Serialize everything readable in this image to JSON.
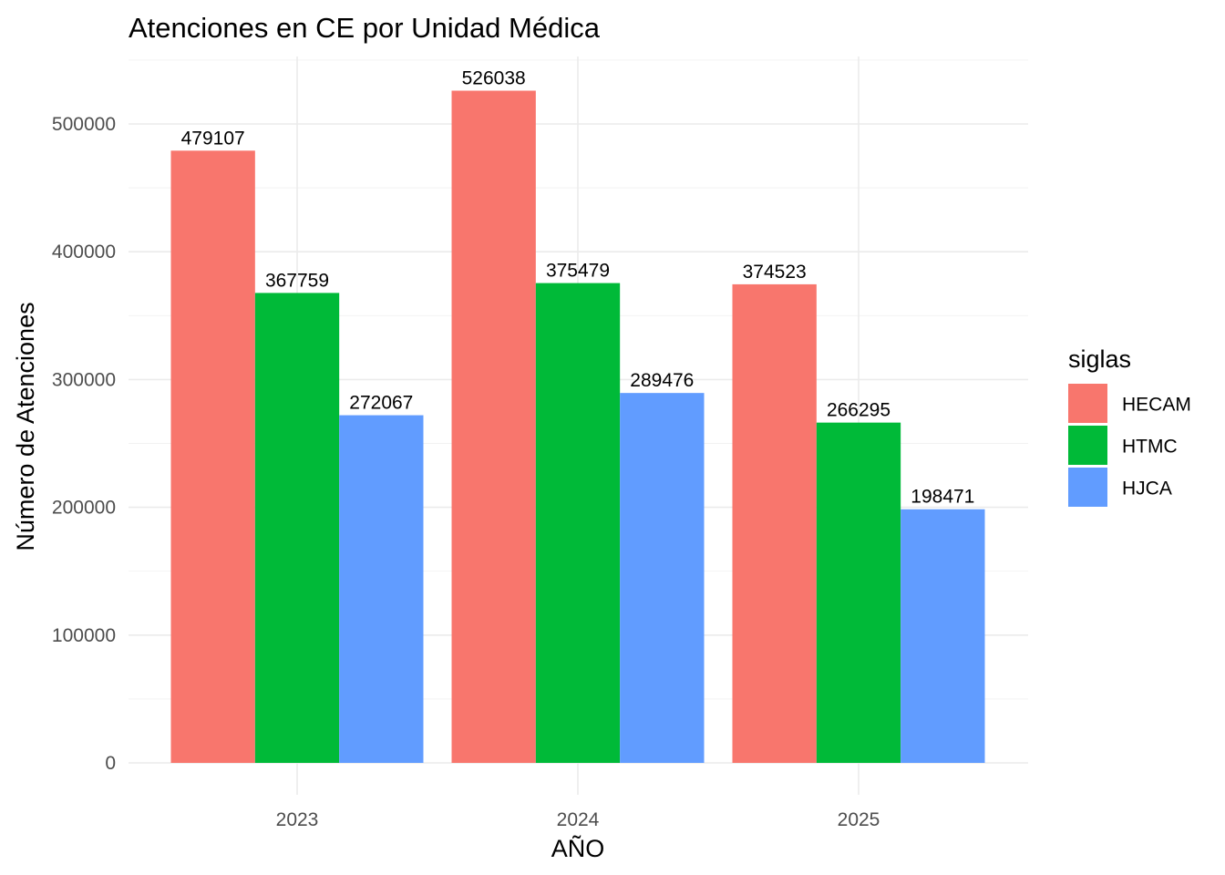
{
  "chart_data": {
    "type": "bar",
    "title": "Atenciones en CE por Unidad Médica",
    "xlabel": "AÑO",
    "ylabel": "Número de Atenciones",
    "categories": [
      "2023",
      "2024",
      "2025"
    ],
    "series": [
      {
        "name": "HECAM",
        "color": "#F8766D",
        "values": [
          479107,
          526038,
          374523
        ]
      },
      {
        "name": "HTMC",
        "color": "#00BA38",
        "values": [
          367759,
          375479,
          266295
        ]
      },
      {
        "name": "HJCA",
        "color": "#619CFF",
        "values": [
          272067,
          289476,
          198471
        ]
      }
    ],
    "ylim": [
      0,
      550000
    ],
    "yticks": [
      0,
      100000,
      200000,
      300000,
      400000,
      500000
    ],
    "ytick_labels": [
      "0",
      "100000",
      "200000",
      "300000",
      "400000",
      "500000"
    ],
    "grid": true,
    "legend": {
      "title": "siglas",
      "position": "right"
    }
  }
}
